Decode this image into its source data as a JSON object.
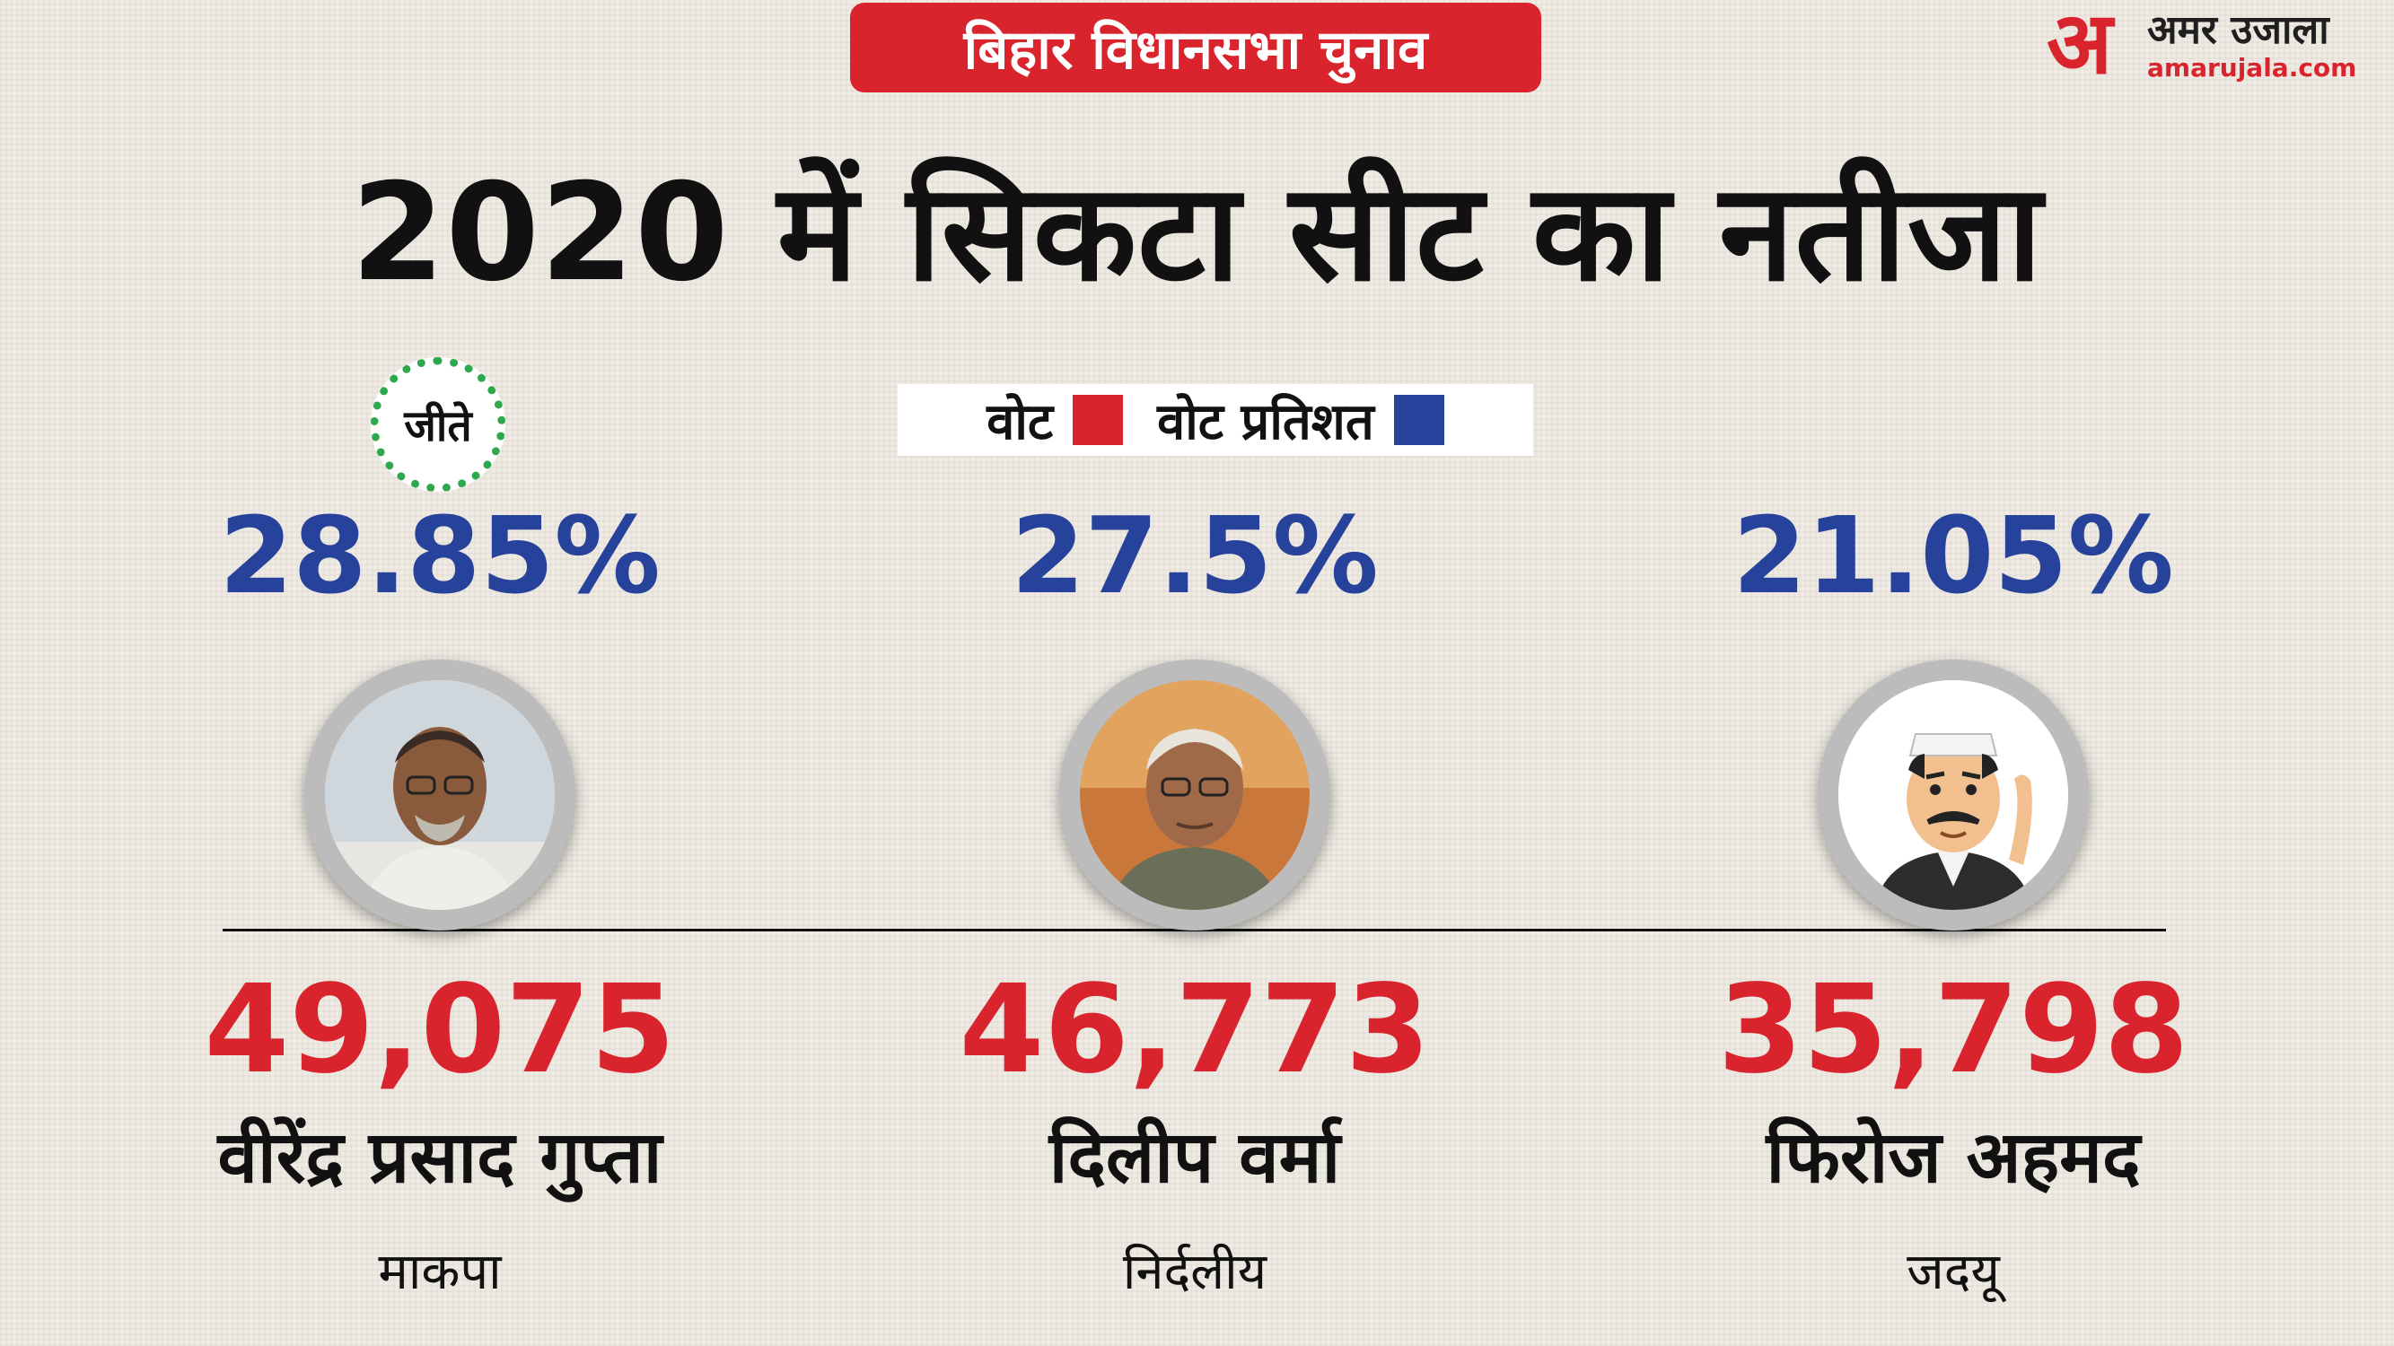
{
  "header": {
    "badge": "बिहार विधानसभा चुनाव"
  },
  "brand": {
    "mark": "अ",
    "name": "अमर उजाला",
    "url": "amarujala.com"
  },
  "title": "2020 में सिकटा सीट का नतीजा",
  "legend": {
    "votes_label": "वोट",
    "votes_color": "#d9232d",
    "percent_label": "वोट प्रतिशत",
    "percent_color": "#26429a"
  },
  "winner_badge": "जीते",
  "candidates": [
    {
      "vote_share": "28.85%",
      "votes": "49,075",
      "name": "वीरेंद्र प्रसाद गुप्ता",
      "party": "माकपा",
      "winner": true,
      "photo": "photo"
    },
    {
      "vote_share": "27.5%",
      "votes": "46,773",
      "name": "दिलीप वर्मा",
      "party": "निर्दलीय",
      "winner": false,
      "photo": "photo"
    },
    {
      "vote_share": "21.05%",
      "votes": "35,798",
      "name": "फिरोज अहमद",
      "party": "जदयू",
      "winner": false,
      "photo": "illustration"
    }
  ]
}
